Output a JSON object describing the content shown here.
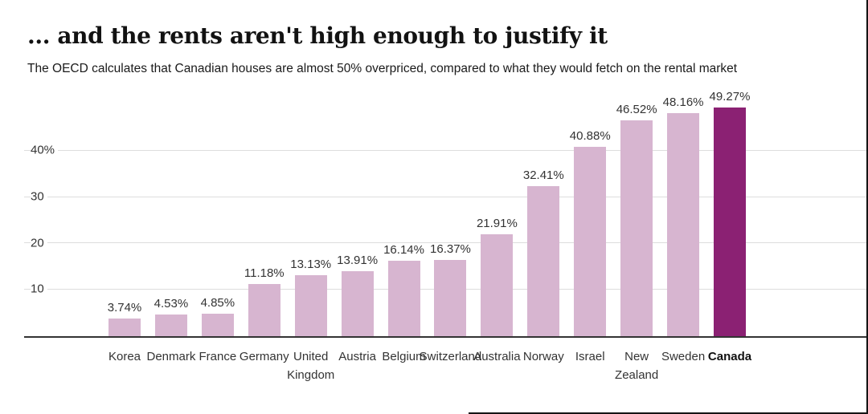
{
  "header": {
    "title": "... and the rents aren't high enough to justify it",
    "subtitle": "The OECD calculates that Canadian houses are almost 50% overpriced, compared to what they would fetch on the rental market"
  },
  "chart_data": {
    "type": "bar",
    "title": "... and the rents aren't high enough to justify it",
    "subtitle": "The OECD calculates that Canadian houses are almost 50% overpriced, compared to what they would fetch on the rental market",
    "categories": [
      "Korea",
      "Denmark",
      "France",
      "Germany",
      "United Kingdom",
      "Austria",
      "Belgium",
      "Switzerland",
      "Australia",
      "Norway",
      "Israel",
      "New Zealand",
      "Sweden",
      "Canada"
    ],
    "category_labels": [
      "Korea",
      "Denmark",
      "France",
      "Germany",
      "United\nKingdom",
      "Austria",
      "Belgium",
      "Switzerland",
      "Australia",
      "Norway",
      "Israel",
      "New\nZealand",
      "Sweden",
      "Canada"
    ],
    "values": [
      3.74,
      4.53,
      4.85,
      11.18,
      13.13,
      13.91,
      16.14,
      16.37,
      21.91,
      32.41,
      40.88,
      46.52,
      48.16,
      49.27
    ],
    "value_labels": [
      "3.74%",
      "4.53%",
      "4.85%",
      "11.18%",
      "13.13%",
      "13.91%",
      "16.14%",
      "16.37%",
      "21.91%",
      "32.41%",
      "40.88%",
      "46.52%",
      "48.16%",
      "49.27%"
    ],
    "yticks": [
      {
        "value": 40,
        "label": "40%"
      },
      {
        "value": 30,
        "label": "30"
      },
      {
        "value": 20,
        "label": "20"
      },
      {
        "value": 10,
        "label": "10"
      }
    ],
    "ylim": [
      0,
      52
    ],
    "grid": true,
    "legend": "none",
    "xlabel": "",
    "ylabel": "",
    "highlight_category": "Canada",
    "colors": {
      "bar": "#d7b5d0",
      "highlight": "#8b2173",
      "gridline": "#dddddd",
      "axis": "#333333"
    }
  }
}
